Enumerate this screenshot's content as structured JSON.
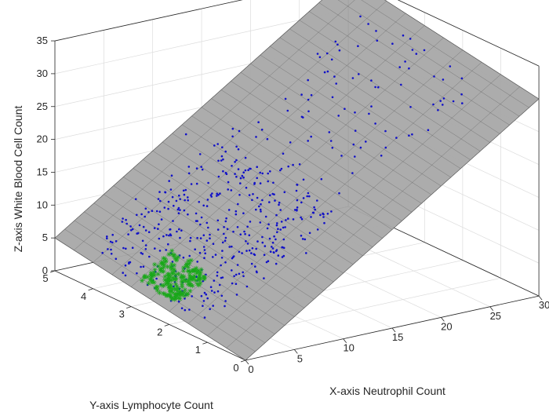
{
  "colors": {
    "plane_fill": "#a8a8a8",
    "plane_edge": "#505050",
    "series_blue": "#1010c8",
    "series_green": "#1aa81a"
  },
  "chart_data": {
    "type": "scatter3d",
    "title": "",
    "xlabel": "X-axis Neutrophil Count",
    "ylabel": "Y-axis Lymphocyte Count",
    "zlabel": "Z-axis White Blood Cell Count",
    "xlim": [
      0,
      30
    ],
    "ylim": [
      0,
      5
    ],
    "zlim": [
      0,
      35
    ],
    "x_ticks": [
      0,
      5,
      10,
      15,
      20,
      25,
      30
    ],
    "y_ticks": [
      0,
      1,
      2,
      3,
      4,
      5
    ],
    "z_ticks": [
      0,
      5,
      10,
      15,
      20,
      25,
      30,
      35
    ],
    "x_tick_labels": [
      "0",
      "5",
      "10",
      "15",
      "20",
      "25",
      "30"
    ],
    "y_tick_labels": [
      "0",
      "1",
      "2",
      "3",
      "4",
      "5"
    ],
    "z_tick_labels": [
      "0",
      "5",
      "10",
      "15",
      "20",
      "25",
      "30",
      "35"
    ],
    "grid": true,
    "legend": "none",
    "fitted_plane": {
      "type": "surface",
      "equation": "z = 1.0*x + 1.0*y",
      "x_range": [
        0,
        30
      ],
      "y_range": [
        0,
        5
      ],
      "mesh_x_steps": 30,
      "mesh_y_steps": 10
    },
    "series": [
      {
        "marker": "dot",
        "color": "#1010c8",
        "count": 500,
        "x_range": [
          0.5,
          29
        ],
        "y_range": [
          0.3,
          4.8
        ],
        "typical_x": [
          3,
          12
        ],
        "note_visible": ""
      },
      {
        "marker": "asterisk",
        "color": "#1aa81a",
        "count": 200,
        "x_range": [
          0.5,
          4.5
        ],
        "y_range": [
          2.0,
          3.0
        ]
      }
    ]
  }
}
